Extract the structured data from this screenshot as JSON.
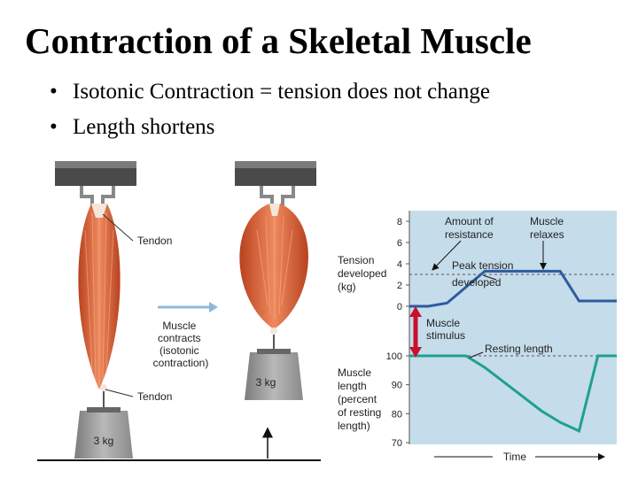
{
  "title": "Contraction of a Skeletal Muscle",
  "bullets": [
    "Isotonic Contraction = tension does not change",
    "Length shortens"
  ],
  "figure": {
    "left_labels": {
      "tendon_top": "Tendon",
      "tendon_bottom": "Tendon",
      "muscle_contracts": [
        "Muscle",
        "contracts",
        "(isotonic",
        "contraction)"
      ],
      "weight_left": "3 kg",
      "weight_right": "3 kg"
    },
    "graph_labels": {
      "amount_of_resistance": [
        "Amount of",
        "resistance"
      ],
      "muscle_relaxes": [
        "Muscle",
        "relaxes"
      ],
      "peak_tension": [
        "Peak tension",
        "developed"
      ],
      "tension_developed": [
        "Tension",
        "developed",
        "(kg)"
      ],
      "muscle_stimulus": [
        "Muscle",
        "stimulus"
      ],
      "resting_length": "Resting length",
      "muscle_length": [
        "Muscle",
        "length",
        "(percent",
        "of resting",
        "length)"
      ],
      "time": "Time"
    },
    "colors": {
      "muscle": "#d9603a",
      "graph_bg": "#c5dcea",
      "tension_line": "#2f5aa0",
      "length_line": "#1fa091",
      "stimulus_arrow": "#c8102e"
    }
  },
  "chart_data": [
    {
      "type": "line",
      "ylabel": "Tension developed (kg)",
      "yticks": [
        0,
        2,
        4,
        6,
        8
      ],
      "ylim": [
        0,
        8
      ],
      "series": [
        {
          "name": "Tension",
          "values": [
            0,
            0,
            0.3,
            1.8,
            3.3,
            3.3,
            3.3,
            3.3,
            3.3,
            0.5,
            0.5,
            0.5
          ]
        }
      ],
      "reference_line": {
        "label": "Peak tension developed",
        "y": 3.3
      }
    },
    {
      "type": "line",
      "ylabel": "Muscle length (percent of resting length)",
      "xlabel": "Time",
      "yticks": [
        70,
        80,
        90,
        100
      ],
      "ylim": [
        70,
        100
      ],
      "series": [
        {
          "name": "Length",
          "values": [
            100,
            100,
            100,
            100,
            96,
            91,
            86,
            81,
            77,
            74,
            100,
            100
          ]
        }
      ],
      "reference_line": {
        "label": "Resting length",
        "y": 100
      }
    }
  ]
}
